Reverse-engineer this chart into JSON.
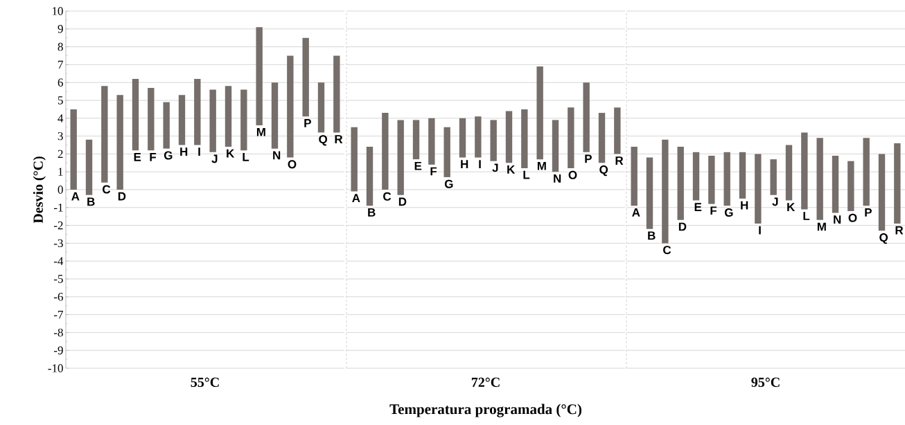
{
  "chart_data": [
    {
      "type": "bar",
      "categories": [
        "A",
        "B",
        "C",
        "D",
        "E",
        "F",
        "G",
        "H",
        "I",
        "J",
        "K",
        "L",
        "M",
        "N",
        "O",
        "P",
        "Q",
        "R"
      ],
      "base": [
        0.0,
        -0.3,
        0.4,
        0.0,
        2.2,
        2.2,
        2.3,
        2.5,
        2.5,
        2.1,
        2.4,
        2.2,
        3.6,
        2.3,
        1.8,
        4.1,
        3.2,
        3.2
      ],
      "values": [
        4.5,
        3.1,
        5.4,
        5.3,
        4.0,
        3.5,
        2.6,
        2.8,
        3.7,
        3.5,
        3.4,
        3.4,
        5.5,
        3.7,
        5.7,
        4.4,
        2.8,
        4.3
      ],
      "color": "#756e6b",
      "xlabel": "55°C",
      "ylabel": "Desvio (°C)",
      "ylim": [
        -10,
        10
      ],
      "yticks": [
        -10,
        -9,
        -8,
        -7,
        -6,
        -5,
        -4,
        -3,
        -2,
        -1,
        0,
        1,
        2,
        3,
        4,
        5,
        6,
        7,
        8,
        9,
        10
      ],
      "grid": "y"
    },
    {
      "type": "bar",
      "categories": [
        "A",
        "B",
        "C",
        "D",
        "E",
        "F",
        "G",
        "H",
        "I",
        "J",
        "K",
        "L",
        "M",
        "N",
        "O",
        "P",
        "Q",
        "R"
      ],
      "base": [
        -0.1,
        -0.9,
        0.0,
        -0.3,
        1.7,
        1.4,
        0.7,
        1.8,
        1.8,
        1.6,
        1.5,
        1.2,
        1.7,
        1.0,
        1.2,
        2.1,
        1.5,
        2.0
      ],
      "values": [
        3.6,
        3.3,
        4.3,
        4.2,
        2.2,
        2.6,
        2.8,
        2.2,
        2.3,
        2.3,
        2.9,
        3.3,
        5.2,
        2.9,
        3.4,
        3.9,
        2.8,
        2.6
      ],
      "color": "#756e6b",
      "xlabel": "72°C",
      "annotations": [
        "Temperatura programada (°C)"
      ],
      "ylim": [
        -10,
        10
      ],
      "yticks": [
        -10,
        -9,
        -8,
        -7,
        -6,
        -5,
        -4,
        -3,
        -2,
        -1,
        0,
        1,
        2,
        3,
        4,
        5,
        6,
        7,
        8,
        9,
        10
      ],
      "grid": "y",
      "tick_labels": "x"
    },
    {
      "type": "bar",
      "categories": [
        "A",
        "B",
        "C",
        "D",
        "E",
        "F",
        "G",
        "H",
        "I",
        "J",
        "K",
        "L",
        "M",
        "N",
        "O",
        "P",
        "Q",
        "R"
      ],
      "base": [
        -0.9,
        -2.2,
        -3.0,
        -1.7,
        -0.6,
        -0.8,
        -0.9,
        -0.5,
        -1.9,
        -0.3,
        -0.6,
        -1.1,
        -1.7,
        -1.3,
        -1.2,
        -0.9,
        -2.3,
        -1.9
      ],
      "values": [
        3.3,
        4.0,
        5.8,
        4.1,
        2.7,
        2.7,
        3.0,
        2.6,
        3.9,
        2.0,
        3.1,
        4.3,
        4.6,
        3.2,
        2.8,
        3.8,
        4.3,
        4.5
      ],
      "color": "#756e6b",
      "xlabel": "95°C",
      "ylim": [
        -10,
        10
      ],
      "yticks": [
        -10,
        -9,
        -8,
        -7,
        -6,
        -5,
        -4,
        -3,
        -2,
        -1,
        0,
        1,
        2,
        3,
        4,
        5,
        6,
        7,
        8,
        9,
        10
      ],
      "grid": "y",
      "tick_labels": "x"
    }
  ]
}
